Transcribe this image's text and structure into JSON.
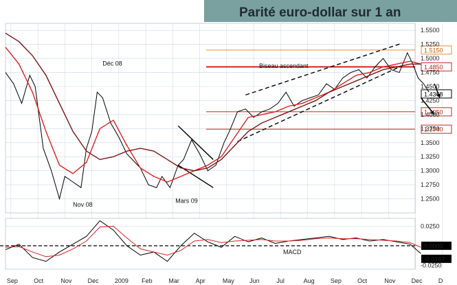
{
  "chart_data": {
    "type": "line",
    "title": "Parité euro-dollar sur 1 an",
    "price_axis": {
      "ylim": [
        1.225,
        1.5625
      ],
      "ticks": [
        1.25,
        1.275,
        1.3,
        1.325,
        1.35,
        1.375,
        1.4,
        1.425,
        1.45,
        1.475,
        1.5,
        1.525,
        1.55
      ],
      "tick_labels": [
        "1.2500",
        "1.2750",
        "1.3000",
        "1.3250",
        "1.3500",
        "1.3750",
        "1.4000",
        "1.4250",
        "1.4500",
        "1.4750",
        "1.5000",
        "1.5250",
        "1.5500"
      ]
    },
    "x_axis": {
      "labels": [
        "Sep",
        "Oct",
        "Nov",
        "Dec",
        "2009",
        "Feb",
        "Mar",
        "Apr",
        "May",
        "Jun",
        "Jul",
        "Aug",
        "Sep",
        "Oct",
        "Nov",
        "Dec",
        "D"
      ],
      "range": [
        0,
        16
      ]
    },
    "series": [
      {
        "name": "",
        "role": "price",
        "color": "#000000",
        "x": [
          0,
          0.3,
          0.6,
          0.9,
          1.1,
          1.4,
          1.7,
          2.0,
          2.2,
          2.5,
          2.8,
          3.0,
          3.2,
          3.4,
          3.6,
          3.9,
          4.2,
          4.5,
          4.8,
          5.0,
          5.3,
          5.6,
          5.8,
          6.1,
          6.4,
          6.6,
          6.9,
          7.2,
          7.5,
          7.8,
          8.1,
          8.3,
          8.6,
          8.9,
          9.2,
          9.5,
          9.8,
          10.1,
          10.4,
          10.7,
          11.0,
          11.3,
          11.6,
          11.9,
          12.2,
          12.5,
          12.8,
          13.1,
          13.4,
          13.7,
          14.0,
          14.3,
          14.6,
          14.9,
          15.1,
          15.3,
          15.5,
          15.7
        ],
        "y": [
          1.475,
          1.455,
          1.42,
          1.47,
          1.45,
          1.34,
          1.3,
          1.25,
          1.29,
          1.28,
          1.27,
          1.34,
          1.37,
          1.44,
          1.43,
          1.385,
          1.36,
          1.33,
          1.315,
          1.305,
          1.275,
          1.27,
          1.29,
          1.27,
          1.31,
          1.32,
          1.355,
          1.33,
          1.3,
          1.31,
          1.35,
          1.37,
          1.405,
          1.41,
          1.395,
          1.405,
          1.41,
          1.42,
          1.44,
          1.415,
          1.425,
          1.43,
          1.435,
          1.455,
          1.445,
          1.465,
          1.475,
          1.48,
          1.465,
          1.485,
          1.5,
          1.48,
          1.475,
          1.51,
          1.49,
          1.465,
          1.455,
          1.44
        ]
      },
      {
        "name": "",
        "role": "short_moving_average",
        "color": "#e02020",
        "x": [
          0,
          0.5,
          1.0,
          1.5,
          2.0,
          2.5,
          3.0,
          3.5,
          4.0,
          4.5,
          5.0,
          5.5,
          6.0,
          6.5,
          7.0,
          7.5,
          8.0,
          8.5,
          9.0,
          9.5,
          10.0,
          10.5,
          11.0,
          11.5,
          12.0,
          12.5,
          13.0,
          13.5,
          14.0,
          14.5,
          15.0,
          15.4
        ],
        "y": [
          1.52,
          1.49,
          1.44,
          1.37,
          1.31,
          1.295,
          1.315,
          1.375,
          1.39,
          1.345,
          1.305,
          1.29,
          1.28,
          1.29,
          1.3,
          1.31,
          1.325,
          1.36,
          1.395,
          1.4,
          1.405,
          1.415,
          1.42,
          1.43,
          1.44,
          1.455,
          1.47,
          1.475,
          1.485,
          1.49,
          1.495,
          1.49
        ]
      },
      {
        "name": "",
        "role": "long_moving_average",
        "color": "#7a1414",
        "x": [
          0,
          0.5,
          1.0,
          1.5,
          2.0,
          2.5,
          3.0,
          3.5,
          4.0,
          4.5,
          5.0,
          5.5,
          6.0,
          6.5,
          7.0,
          7.5,
          8.0,
          8.5,
          9.0,
          9.5,
          10.0,
          10.5,
          11.0,
          11.5,
          12.0,
          12.5,
          13.0,
          13.5,
          14.0,
          14.5,
          15.0,
          15.4
        ],
        "y": [
          1.545,
          1.53,
          1.505,
          1.47,
          1.42,
          1.37,
          1.335,
          1.32,
          1.325,
          1.335,
          1.34,
          1.335,
          1.32,
          1.305,
          1.3,
          1.305,
          1.32,
          1.345,
          1.37,
          1.385,
          1.395,
          1.405,
          1.415,
          1.425,
          1.44,
          1.45,
          1.46,
          1.47,
          1.48,
          1.485,
          1.49,
          1.49
        ]
      }
    ],
    "macd": {
      "label": "MACD",
      "ylim": [
        -0.03,
        0.035
      ],
      "tick_labels": [
        "0.0250",
        "0.0000",
        "-0.0167",
        "-0.0250"
      ],
      "series": [
        {
          "name": "",
          "role": "macd_line",
          "color": "#000000",
          "x": [
            0,
            0.5,
            1.0,
            1.5,
            2.0,
            2.5,
            3.0,
            3.5,
            4.0,
            4.5,
            5.0,
            5.5,
            6.0,
            6.5,
            7.0,
            7.5,
            8.0,
            8.5,
            9.0,
            9.5,
            10.0,
            10.5,
            11.0,
            11.5,
            12.0,
            12.5,
            13.0,
            13.5,
            14.0,
            14.5,
            15.0,
            15.4
          ],
          "y": [
            -0.005,
            0.002,
            -0.015,
            -0.02,
            -0.008,
            0.002,
            0.012,
            0.032,
            0.02,
            0.0,
            -0.012,
            -0.008,
            -0.02,
            0.0,
            0.016,
            0.005,
            -0.002,
            0.012,
            0.005,
            0.01,
            0.003,
            0.006,
            0.008,
            0.01,
            0.012,
            0.008,
            0.01,
            0.006,
            0.008,
            0.005,
            0.002,
            -0.01
          ]
        },
        {
          "name": "",
          "role": "signal_line",
          "color": "#e02020",
          "x": [
            0,
            0.5,
            1.0,
            1.5,
            2.0,
            2.5,
            3.0,
            3.5,
            4.0,
            4.5,
            5.0,
            5.5,
            6.0,
            6.5,
            7.0,
            7.5,
            8.0,
            8.5,
            9.0,
            9.5,
            10.0,
            10.5,
            11.0,
            11.5,
            12.0,
            12.5,
            13.0,
            13.5,
            14.0,
            14.5,
            15.0,
            15.4
          ],
          "y": [
            -0.002,
            -0.001,
            -0.008,
            -0.014,
            -0.012,
            -0.004,
            0.006,
            0.024,
            0.025,
            0.01,
            -0.004,
            -0.008,
            -0.012,
            -0.006,
            0.006,
            0.008,
            0.004,
            0.006,
            0.007,
            0.008,
            0.006,
            0.006,
            0.007,
            0.009,
            0.01,
            0.009,
            0.009,
            0.008,
            0.007,
            0.006,
            0.004,
            -0.002
          ]
        }
      ]
    },
    "levels": [
      {
        "value": 1.515,
        "label": "1.5150",
        "color": "#f08a2a"
      },
      {
        "value": 1.485,
        "label": "1.4850",
        "color": "#d42020"
      },
      {
        "value": 1.4368,
        "label": "1.4368",
        "color": "#000000"
      },
      {
        "value": 1.405,
        "label": "1.4050",
        "color": "#d42020"
      },
      {
        "value": 1.374,
        "label": "1.3740",
        "color": "#d42020"
      }
    ],
    "annotations": [
      {
        "text": "Déc 08",
        "x": 3.6,
        "y": 1.487
      },
      {
        "text": "Biseau ascendant",
        "x": 9.4,
        "y": 1.483
      },
      {
        "text": "Nov 08",
        "x": 2.5,
        "y": 1.236
      },
      {
        "text": "Mars 09",
        "x": 6.3,
        "y": 1.243
      }
    ],
    "trend_lines": [
      {
        "x": [
          8.9,
          14.7
        ],
        "y": [
          1.435,
          1.527
        ],
        "style": "dashed"
      },
      {
        "x": [
          8.6,
          14.7
        ],
        "y": [
          1.352,
          1.487
        ],
        "style": "dashed"
      },
      {
        "x": [
          6.4,
          7.7
        ],
        "y": [
          1.38,
          1.32
        ],
        "style": "solid"
      },
      {
        "x": [
          6.4,
          7.7
        ],
        "y": [
          1.31,
          1.27
        ],
        "style": "solid"
      }
    ],
    "arrows": [
      {
        "x": [
          15.4,
          15.9
        ],
        "y": [
          1.43,
          1.4
        ]
      },
      {
        "x": [
          15.9,
          16.1
        ],
        "y": [
          1.455,
          1.43
        ]
      }
    ],
    "grid": true,
    "colors": {
      "title_band": "#7ba0a0",
      "grid": "#c9d7e3",
      "macd_panel": "#ffffff"
    }
  }
}
